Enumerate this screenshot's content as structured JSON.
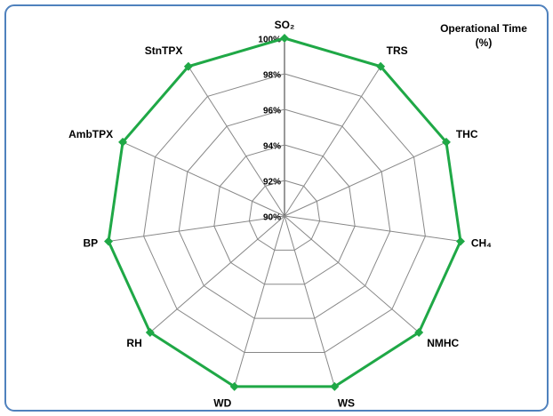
{
  "chart_data": {
    "type": "radar",
    "title": "Operational Time (%)",
    "categories": [
      "SO₂",
      "TRS",
      "THC",
      "CH₄",
      "NMHC",
      "WS",
      "WD",
      "RH",
      "BP",
      "AmbTPX",
      "StnTPX"
    ],
    "series": [
      {
        "name": "Operational Time",
        "color": "#1fa846",
        "values": [
          100,
          100,
          100,
          100,
          100,
          100,
          100,
          100,
          100,
          100,
          100
        ]
      }
    ],
    "ylim": [
      90,
      100
    ],
    "yticks": [
      {
        "value": 90,
        "label": "90%"
      },
      {
        "value": 92,
        "label": "92%"
      },
      {
        "value": 94,
        "label": "94%"
      },
      {
        "value": 96,
        "label": "96%"
      },
      {
        "value": 98,
        "label": "98%"
      },
      {
        "value": 100,
        "label": "100%"
      }
    ],
    "grid": true
  }
}
